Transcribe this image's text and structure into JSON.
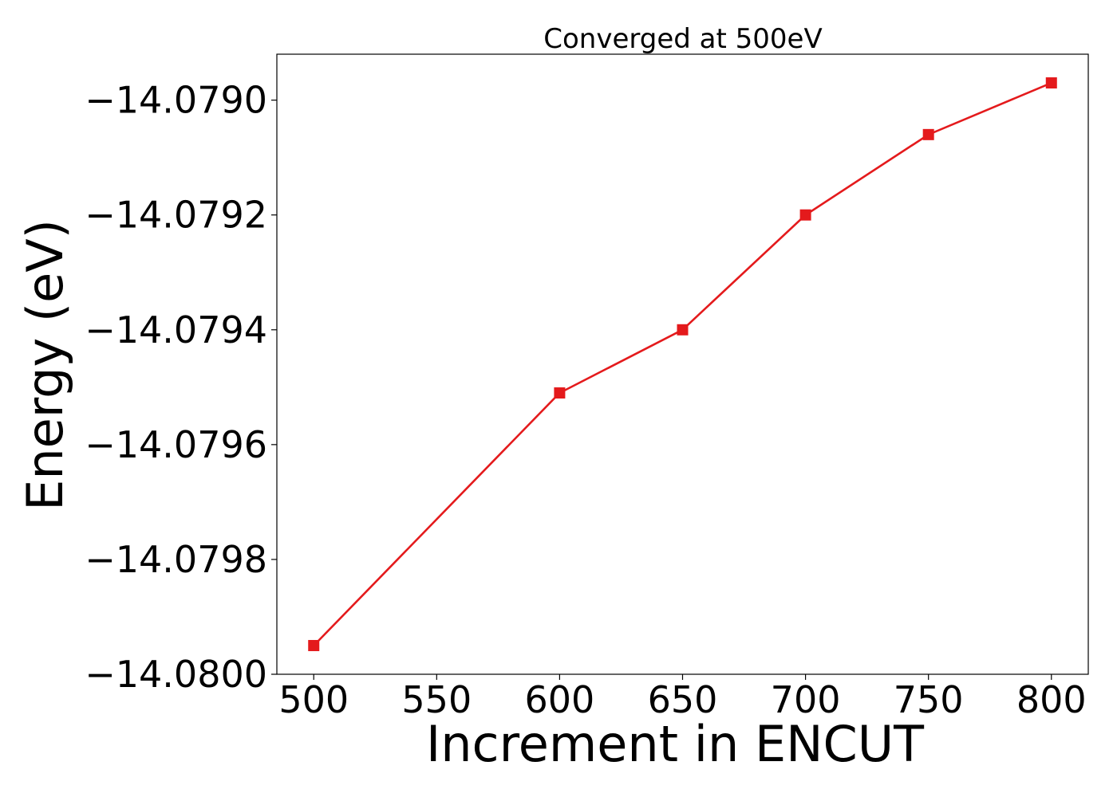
{
  "chart_data": {
    "type": "line",
    "title": "Converged at 500eV",
    "xlabel": "Increment in ENCUT",
    "ylabel": "Energy (eV)",
    "x": [
      500,
      600,
      650,
      700,
      750,
      800
    ],
    "series": [
      {
        "values": [
          -14.07995,
          -14.07951,
          -14.0794,
          -14.0792,
          -14.07906,
          -14.07897
        ],
        "color": "#e41a1c",
        "marker": "square"
      }
    ],
    "xticks": [
      500,
      550,
      600,
      650,
      700,
      750,
      800
    ],
    "xtick_labels": [
      "500",
      "550",
      "600",
      "650",
      "700",
      "750",
      "800"
    ],
    "yticks": [
      -14.08,
      -14.0798,
      -14.0796,
      -14.0794,
      -14.0792,
      -14.079
    ],
    "ytick_labels": [
      "−14.0800",
      "−14.0798",
      "−14.0796",
      "−14.0794",
      "−14.0792",
      "−14.0790"
    ],
    "xlim": [
      485,
      815
    ],
    "ylim": [
      -14.08,
      -14.07892
    ],
    "grid": false,
    "legend": false
  }
}
